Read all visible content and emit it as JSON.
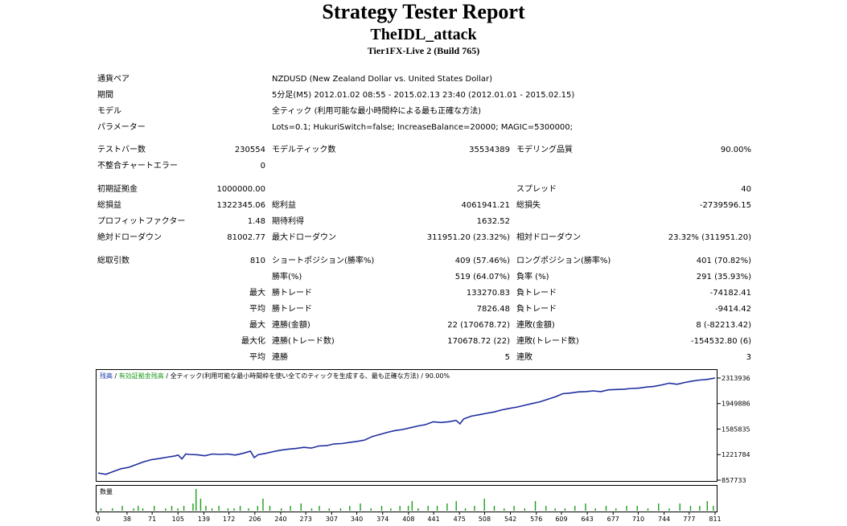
{
  "header": {
    "title": "Strategy Tester Report",
    "subtitle": "TheIDL_attack",
    "build": "Tier1FX-Live 2 (Build 765)"
  },
  "info": {
    "symbol_label": "通貨ペア",
    "symbol_value": "NZDUSD (New Zealand Dollar vs. United States Dollar)",
    "period_label": "期間",
    "period_value": "5分足(M5) 2012.01.02 08:55 - 2015.02.13 23:40 (2012.01.01 - 2015.02.15)",
    "model_label": "モデル",
    "model_value": "全ティック (利用可能な最小時間枠による最も正確な方法)",
    "params_label": "パラメーター",
    "params_value": "Lots=0.1; HukuriSwitch=false; IncreaseBalance=20000; MAGIC=5300000;"
  },
  "stats": {
    "bars_label": "テストバー数",
    "bars_value": "230554",
    "ticks_label": "モデルティック数",
    "ticks_value": "35534389",
    "quality_label": "モデリング品質",
    "quality_value": "90.00%",
    "mismatch_label": "不整合チャートエラー",
    "mismatch_value": "0",
    "deposit_label": "初期証拠金",
    "deposit_value": "1000000.00",
    "spread_label": "スプレッド",
    "spread_value": "40",
    "net_label": "総損益",
    "net_value": "1322345.06",
    "gross_profit_label": "総利益",
    "gross_profit_value": "4061941.21",
    "gross_loss_label": "総損失",
    "gross_loss_value": "-2739596.15",
    "pf_label": "プロフィットファクター",
    "pf_value": "1.48",
    "payoff_label": "期待利得",
    "payoff_value": "1632.52",
    "abs_dd_label": "絶対ドローダウン",
    "abs_dd_value": "81002.77",
    "max_dd_label": "最大ドローダウン",
    "max_dd_value": "311951.20 (23.32%)",
    "rel_dd_label": "相対ドローダウン",
    "rel_dd_value": "23.32% (311951.20)"
  },
  "trades": {
    "total_label": "総取引数",
    "total_value": "810",
    "short_label": "ショートポジション(勝率%)",
    "short_value": "409 (57.46%)",
    "long_label": "ロングポジション(勝率%)",
    "long_value": "401 (70.82%)",
    "win_label": "勝率(%)",
    "win_value": "519 (64.07%)",
    "loss_label": "負率 (%)",
    "loss_value": "291 (35.93%)",
    "largest_label": "最大",
    "largest_win_label": "勝トレード",
    "largest_win_value": "133270.83",
    "largest_loss_label": "負トレード",
    "largest_loss_value": "-74182.41",
    "average_label": "平均",
    "average_win_label": "勝トレード",
    "average_win_value": "7826.48",
    "average_loss_label": "負トレード",
    "average_loss_value": "-9414.42",
    "max_label": "最大",
    "max_consec_wins_label": "連勝(金額)",
    "max_consec_wins_value": "22 (170678.72)",
    "max_consec_losses_label": "連敗(金額)",
    "max_consec_losses_value": "8 (-82213.42)",
    "maximal_label": "最大化",
    "maximal_wins_label": "連勝(トレード数)",
    "maximal_wins_value": "170678.72 (22)",
    "maximal_losses_label": "連敗(トレード数)",
    "maximal_losses_value": "-154532.80 (6)",
    "avg_consec_label": "平均",
    "avg_consec_wins_label": "連勝",
    "avg_consec_wins_value": "5",
    "avg_consec_losses_label": "連敗",
    "avg_consec_losses_value": "3"
  },
  "chart_data": [
    {
      "type": "line",
      "legend": {
        "balance": "残高",
        "sep1": " / ",
        "equity": "有効証拠金残高",
        "rest": " / 全ティック(利用可能な最小時間枠を使い全てのティックを生成する、最も正確な方法) / 90.00%"
      },
      "y_ticks": [
        "2313936",
        "1949886",
        "1585835",
        "1221784",
        "857733"
      ],
      "ylim": [
        857733,
        2313936
      ],
      "xlim": [
        0,
        810
      ],
      "series": [
        {
          "name": "残高",
          "x": [
            0,
            10,
            20,
            30,
            40,
            45,
            50,
            60,
            70,
            80,
            90,
            100,
            105,
            110,
            115,
            120,
            130,
            140,
            150,
            160,
            170,
            180,
            190,
            200,
            205,
            210,
            220,
            230,
            240,
            250,
            260,
            270,
            280,
            290,
            300,
            310,
            320,
            330,
            340,
            350,
            360,
            370,
            380,
            390,
            400,
            410,
            420,
            430,
            440,
            450,
            460,
            470,
            475,
            480,
            490,
            500,
            510,
            520,
            530,
            540,
            550,
            560,
            570,
            580,
            590,
            600,
            610,
            620,
            630,
            640,
            650,
            660,
            670,
            680,
            690,
            700,
            710,
            720,
            730,
            740,
            750,
            760,
            770,
            780,
            790,
            800,
            810
          ],
          "y": [
            960000,
            940000,
            980000,
            1020000,
            1040000,
            1060000,
            1080000,
            1120000,
            1150000,
            1165000,
            1185000,
            1200000,
            1215000,
            1160000,
            1230000,
            1225000,
            1220000,
            1205000,
            1230000,
            1225000,
            1230000,
            1215000,
            1240000,
            1270000,
            1180000,
            1220000,
            1240000,
            1265000,
            1285000,
            1300000,
            1310000,
            1325000,
            1315000,
            1345000,
            1350000,
            1375000,
            1380000,
            1395000,
            1410000,
            1430000,
            1480000,
            1510000,
            1540000,
            1565000,
            1580000,
            1605000,
            1630000,
            1650000,
            1690000,
            1680000,
            1690000,
            1710000,
            1660000,
            1730000,
            1770000,
            1790000,
            1810000,
            1830000,
            1860000,
            1880000,
            1900000,
            1925000,
            1950000,
            1975000,
            2010000,
            2045000,
            2090000,
            2100000,
            2115000,
            2120000,
            2130000,
            2120000,
            2145000,
            2150000,
            2155000,
            2165000,
            2170000,
            2185000,
            2195000,
            2215000,
            2240000,
            2225000,
            2250000,
            2270000,
            2285000,
            2295000,
            2313936
          ]
        }
      ]
    },
    {
      "type": "bar",
      "title": "数量",
      "x_ticks": [
        "0",
        "38",
        "71",
        "105",
        "139",
        "172",
        "206",
        "240",
        "273",
        "307",
        "340",
        "374",
        "408",
        "441",
        "475",
        "508",
        "542",
        "576",
        "609",
        "643",
        "677",
        "710",
        "744",
        "777",
        "811"
      ],
      "xlim": [
        0,
        811
      ],
      "x": [
        3,
        18,
        31,
        46,
        52,
        58,
        73,
        88,
        96,
        104,
        112,
        124,
        128,
        134,
        141,
        149,
        158,
        170,
        178,
        186,
        197,
        209,
        216,
        225,
        240,
        252,
        266,
        280,
        290,
        303,
        318,
        330,
        344,
        358,
        372,
        384,
        396,
        407,
        412,
        420,
        433,
        445,
        458,
        470,
        482,
        494,
        507,
        520,
        533,
        546,
        560,
        574,
        588,
        600,
        613,
        626,
        640,
        653,
        667,
        680,
        694,
        708,
        722,
        736,
        750,
        764,
        778,
        790,
        800,
        808
      ],
      "values": [
        1,
        1,
        2,
        1,
        2,
        1,
        2,
        1,
        2,
        1,
        2,
        3,
        9,
        5,
        2,
        1,
        2,
        1,
        1,
        2,
        1,
        2,
        5,
        2,
        1,
        2,
        3,
        1,
        2,
        1,
        1,
        2,
        3,
        1,
        2,
        1,
        2,
        2,
        4,
        1,
        2,
        2,
        3,
        4,
        1,
        2,
        5,
        2,
        1,
        2,
        1,
        4,
        2,
        1,
        1,
        2,
        3,
        1,
        2,
        1,
        2,
        2,
        1,
        3,
        1,
        3,
        2,
        2,
        4,
        2
      ]
    }
  ]
}
